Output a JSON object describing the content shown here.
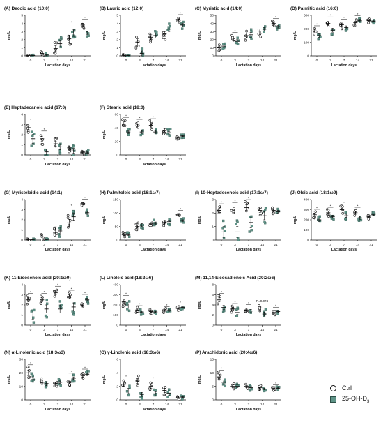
{
  "legend": {
    "ctrl_label": "Ctrl",
    "treat_label": "25-OH-D",
    "treat_sub": "3",
    "ctrl_color": "#111111",
    "treat_color": "#5f9488"
  },
  "chart_data": [
    {
      "type": "scatter",
      "title": "(A)      Decoic acid (10:0)",
      "xlabel": "Lactation days",
      "ylabel": "mg/L",
      "categories": [
        "0",
        "3",
        "7",
        "14",
        "21"
      ],
      "ylim": [
        0,
        5
      ],
      "yticks": [
        0,
        1,
        2,
        3,
        4,
        5
      ],
      "series": [
        {
          "name": "Ctrl",
          "mean": [
            0.05,
            0.3,
            0.9,
            2.1,
            3.8
          ],
          "sem": [
            0.03,
            0.25,
            0.35,
            0.45,
            0.2
          ]
        },
        {
          "name": "25-OH-D3",
          "mean": [
            0.05,
            0.1,
            1.5,
            2.8,
            2.8
          ],
          "sem": [
            0.02,
            0.1,
            0.4,
            0.4,
            0.15
          ]
        }
      ],
      "sig": [
        3,
        4
      ]
    },
    {
      "type": "scatter",
      "title": "(B)      Lauric acid (12:0)",
      "xlabel": "Lactation days",
      "ylabel": "mg/L",
      "categories": [
        "0",
        "3",
        "7",
        "14",
        "21"
      ],
      "ylim": [
        0,
        5
      ],
      "yticks": [
        0,
        1,
        2,
        3,
        4,
        5
      ],
      "series": [
        {
          "name": "Ctrl",
          "mean": [
            0.05,
            1.7,
            2.3,
            2.7,
            4.5
          ],
          "sem": [
            0.03,
            0.4,
            0.3,
            0.3,
            0.15
          ]
        },
        {
          "name": "25-OH-D3",
          "mean": [
            0.05,
            0.3,
            2.5,
            3.3,
            3.8
          ],
          "sem": [
            0.02,
            0.3,
            0.3,
            0.3,
            0.2
          ]
        }
      ],
      "sig": [
        4
      ]
    },
    {
      "type": "scatter",
      "title": "(C)      Myristic acid (14:0)",
      "xlabel": "Lactation days",
      "ylabel": "mg/L",
      "categories": [
        "0",
        "3",
        "7",
        "14",
        "21"
      ],
      "ylim": [
        0,
        50
      ],
      "yticks": [
        0,
        10,
        20,
        30,
        40,
        50
      ],
      "series": [
        {
          "name": "Ctrl",
          "mean": [
            10,
            22,
            25,
            28,
            40
          ],
          "sem": [
            1.5,
            2,
            3,
            2,
            1.5
          ]
        },
        {
          "name": "25-OH-D3",
          "mean": [
            12,
            18,
            26,
            33,
            36
          ],
          "sem": [
            1.5,
            2,
            3,
            2,
            1.5
          ]
        }
      ],
      "sig": [
        1,
        4
      ]
    },
    {
      "type": "scatter",
      "title": "(D)      Palmitic acid (16:0)",
      "xlabel": "Lactation days",
      "ylabel": "mg/L",
      "categories": [
        "0",
        "3",
        "7",
        "14",
        "21"
      ],
      "ylim": [
        0,
        300
      ],
      "yticks": [
        0,
        100,
        200,
        300
      ],
      "series": [
        {
          "name": "Ctrl",
          "mean": [
            185,
            240,
            230,
            245,
            262
          ],
          "sem": [
            10,
            15,
            12,
            10,
            6
          ]
        },
        {
          "name": "25-OH-D3",
          "mean": [
            150,
            190,
            210,
            260,
            255
          ],
          "sem": [
            12,
            15,
            12,
            10,
            6
          ]
        }
      ],
      "sig": [
        0,
        1,
        2,
        3
      ]
    },
    {
      "type": "scatter",
      "title": "(E)      Heptadecanoic acid (17:0)",
      "xlabel": "Lactation days",
      "ylabel": "mg/L",
      "categories": [
        "0",
        "3",
        "7",
        "14",
        "21"
      ],
      "ylim": [
        0,
        4
      ],
      "yticks": [
        0,
        1,
        2,
        3,
        4
      ],
      "series": [
        {
          "name": "Ctrl",
          "mean": [
            2.7,
            1.6,
            1.1,
            0.7,
            0.3
          ],
          "sem": [
            0.2,
            0.25,
            0.25,
            0.2,
            0.1
          ]
        },
        {
          "name": "25-OH-D3",
          "mean": [
            1.6,
            0.3,
            0.8,
            0.4,
            0.2
          ],
          "sem": [
            0.45,
            0.3,
            0.3,
            0.25,
            0.1
          ]
        }
      ],
      "sig": [
        0,
        1
      ]
    },
    {
      "type": "scatter",
      "title": "(F)      Stearic acid (18:0)",
      "xlabel": "Lactation days",
      "ylabel": "mg/L",
      "categories": [
        "0",
        "3",
        "7",
        "14",
        "21"
      ],
      "ylim": [
        0,
        60
      ],
      "yticks": [
        0,
        20,
        40,
        60
      ],
      "series": [
        {
          "name": "Ctrl",
          "mean": [
            46,
            43,
            44,
            36,
            26
          ],
          "sem": [
            3,
            3,
            3,
            3,
            1
          ]
        },
        {
          "name": "25-OH-D3",
          "mean": [
            34,
            34,
            34,
            33,
            28
          ],
          "sem": [
            2,
            2,
            2,
            2,
            1
          ]
        }
      ],
      "sig": [
        0,
        1,
        2
      ]
    },
    {
      "type": "scatter",
      "title": "(G)      Myristelaidic acid (14:1)",
      "xlabel": "Lactation days",
      "ylabel": "mg/L",
      "categories": [
        "0",
        "3",
        "7",
        "14",
        "21"
      ],
      "ylim": [
        0,
        4
      ],
      "yticks": [
        0,
        1,
        2,
        3,
        4
      ],
      "series": [
        {
          "name": "Ctrl",
          "mean": [
            0.05,
            0.3,
            1,
            1.7,
            3.6
          ],
          "sem": [
            0.03,
            0.2,
            0.3,
            0.35,
            0.1
          ]
        },
        {
          "name": "25-OH-D3",
          "mean": [
            0.05,
            0.05,
            0.9,
            2.3,
            2.7
          ],
          "sem": [
            0.02,
            0.03,
            0.35,
            0.35,
            0.15
          ]
        }
      ],
      "sig": [
        3,
        4
      ]
    },
    {
      "type": "scatter",
      "title": "(H)      Palmitoleic acid (16:1ω7)",
      "xlabel": "Lactation days",
      "ylabel": "mg/L",
      "categories": [
        "0",
        "3",
        "7",
        "14",
        "21"
      ],
      "ylim": [
        0,
        150
      ],
      "yticks": [
        0,
        50,
        100,
        150
      ],
      "series": [
        {
          "name": "Ctrl",
          "mean": [
            20,
            50,
            60,
            65,
            95
          ],
          "sem": [
            3,
            6,
            5,
            5,
            3
          ]
        },
        {
          "name": "25-OH-D3",
          "mean": [
            20,
            55,
            62,
            68,
            72
          ],
          "sem": [
            3,
            6,
            5,
            5,
            3
          ]
        }
      ],
      "sig": [
        4
      ]
    },
    {
      "type": "scatter",
      "title": "(I)      10-Heptadecenoic acid (17:1ω7)",
      "xlabel": "Lactation days",
      "ylabel": "mg/L",
      "categories": [
        "0",
        "3",
        "7",
        "14",
        "21"
      ],
      "ylim": [
        0,
        3
      ],
      "yticks": [
        0,
        1,
        2,
        3
      ],
      "series": [
        {
          "name": "Ctrl",
          "mean": [
            2.2,
            2.3,
            2.4,
            2.2,
            2.2
          ],
          "sem": [
            0.15,
            0.15,
            0.2,
            0.15,
            0.1
          ]
        },
        {
          "name": "25-OH-D3",
          "mean": [
            0.6,
            0.6,
            1.3,
            1.8,
            2.1
          ],
          "sem": [
            0.4,
            0.4,
            0.4,
            0.3,
            0.1
          ]
        }
      ],
      "sig": [
        0,
        1,
        2
      ]
    },
    {
      "type": "scatter",
      "title": "(J)      Oleic acid (18:1ω9)",
      "xlabel": "Lactation days",
      "ylabel": "mg/L",
      "categories": [
        "0",
        "3",
        "7",
        "14",
        "21"
      ],
      "ylim": [
        0,
        400
      ],
      "yticks": [
        0,
        100,
        200,
        300,
        400
      ],
      "series": [
        {
          "name": "Ctrl",
          "mean": [
            250,
            270,
            300,
            270,
            225
          ],
          "sem": [
            15,
            15,
            15,
            15,
            8
          ]
        },
        {
          "name": "25-OH-D3",
          "mean": [
            200,
            230,
            240,
            220,
            250
          ],
          "sem": [
            15,
            15,
            15,
            15,
            8
          ]
        }
      ],
      "sig": [
        0,
        1,
        2,
        3
      ]
    },
    {
      "type": "scatter",
      "title": "(K)      11-Eicosenoic acid (20:1ω9)",
      "xlabel": "Lactation days",
      "ylabel": "mg/L",
      "categories": [
        "0",
        "3",
        "7",
        "14",
        "21"
      ],
      "ylim": [
        0,
        4
      ],
      "yticks": [
        0,
        1,
        2,
        3,
        4
      ],
      "series": [
        {
          "name": "Ctrl",
          "mean": [
            2.5,
            2.5,
            3.2,
            2.8,
            1.9
          ],
          "sem": [
            0.2,
            0.2,
            0.2,
            0.2,
            0.1
          ]
        },
        {
          "name": "25-OH-D3",
          "mean": [
            1,
            1.6,
            1.6,
            1.8,
            2.5
          ],
          "sem": [
            0.4,
            0.4,
            0.4,
            0.4,
            0.15
          ]
        }
      ],
      "sig": [
        0,
        1,
        2,
        3,
        4
      ]
    },
    {
      "type": "scatter",
      "title": "(L)      Linoleic acid (18:2ω6)",
      "xlabel": "Lactation days",
      "ylabel": "mg/L",
      "categories": [
        "0",
        "3",
        "7",
        "14",
        "21"
      ],
      "ylim": [
        0,
        400
      ],
      "yticks": [
        0,
        100,
        200,
        300,
        400
      ],
      "series": [
        {
          "name": "Ctrl",
          "mean": [
            230,
            150,
            135,
            145,
            165
          ],
          "sem": [
            20,
            10,
            8,
            8,
            6
          ]
        },
        {
          "name": "25-OH-D3",
          "mean": [
            190,
            130,
            130,
            145,
            175
          ],
          "sem": [
            20,
            10,
            8,
            8,
            6
          ]
        }
      ],
      "sig": [
        0,
        1,
        3,
        4
      ]
    },
    {
      "type": "scatter",
      "title": "(M)      11,14-Eicosadienoic Acid (20:2ω6)",
      "xlabel": "Lactation days",
      "ylabel": "mg/L",
      "categories": [
        "0",
        "3",
        "7",
        "14",
        "21"
      ],
      "ylim": [
        0,
        8
      ],
      "yticks": [
        0,
        2,
        4,
        6,
        8
      ],
      "series": [
        {
          "name": "Ctrl",
          "mean": [
            5,
            3.2,
            3,
            3.4,
            2.4
          ],
          "sem": [
            0.4,
            0.3,
            0.3,
            0.3,
            0.2
          ]
        },
        {
          "name": "25-OH-D3",
          "mean": [
            3.5,
            2.5,
            2.8,
            2.2,
            2.7
          ],
          "sem": [
            0.4,
            0.4,
            0.3,
            0.4,
            0.2
          ]
        }
      ],
      "sig": [
        0,
        1,
        2,
        4
      ],
      "annotation": {
        "text": "P=0.074",
        "cat": 3
      }
    },
    {
      "type": "scatter",
      "title": "(N)      α-Linolenic acid (18:3ω3)",
      "xlabel": "Lactation days",
      "ylabel": "mg/L",
      "categories": [
        "0",
        "3",
        "7",
        "14",
        "21"
      ],
      "ylim": [
        0,
        30
      ],
      "yticks": [
        0,
        10,
        20,
        30
      ],
      "series": [
        {
          "name": "Ctrl",
          "mean": [
            20,
            13,
            12,
            13,
            18
          ],
          "sem": [
            2,
            1.5,
            1,
            1,
            1
          ]
        },
        {
          "name": "25-OH-D3",
          "mean": [
            15,
            12,
            13,
            16,
            19
          ],
          "sem": [
            2,
            1.5,
            1,
            1,
            1
          ]
        }
      ],
      "sig": [
        0,
        3,
        4
      ]
    },
    {
      "type": "scatter",
      "title": "(O)      γ-Linolenic acid (18:3ω6)",
      "xlabel": "Lactation days",
      "ylabel": "mg/L",
      "categories": [
        "0",
        "3",
        "7",
        "14",
        "21"
      ],
      "ylim": [
        0,
        6
      ],
      "yticks": [
        0,
        2,
        4,
        6
      ],
      "series": [
        {
          "name": "Ctrl",
          "mean": [
            2.3,
            2.8,
            2,
            1.4,
            0.3
          ],
          "sem": [
            0.3,
            0.4,
            0.3,
            0.3,
            0.1
          ]
        },
        {
          "name": "25-OH-D3",
          "mean": [
            1.3,
            0.8,
            0.9,
            1,
            0.4
          ],
          "sem": [
            0.4,
            0.3,
            0.3,
            0.3,
            0.1
          ]
        }
      ],
      "sig": [
        0,
        2
      ]
    },
    {
      "type": "scatter",
      "title": "(P)      Arachidonic acid (20:4ω6)",
      "xlabel": "Lactation days",
      "ylabel": "mg/L",
      "categories": [
        "0",
        "3",
        "7",
        "14",
        "21"
      ],
      "ylim": [
        0,
        15
      ],
      "yticks": [
        0,
        5,
        10,
        15
      ],
      "series": [
        {
          "name": "Ctrl",
          "mean": [
            8.5,
            5,
            5,
            4.5,
            4
          ],
          "sem": [
            0.8,
            0.5,
            0.4,
            0.3,
            0.2
          ]
        },
        {
          "name": "25-OH-D3",
          "mean": [
            6.5,
            5,
            4.5,
            4,
            4.3
          ],
          "sem": [
            0.8,
            0.5,
            0.4,
            0.3,
            0.2
          ]
        }
      ],
      "sig": [
        0,
        4
      ]
    }
  ]
}
